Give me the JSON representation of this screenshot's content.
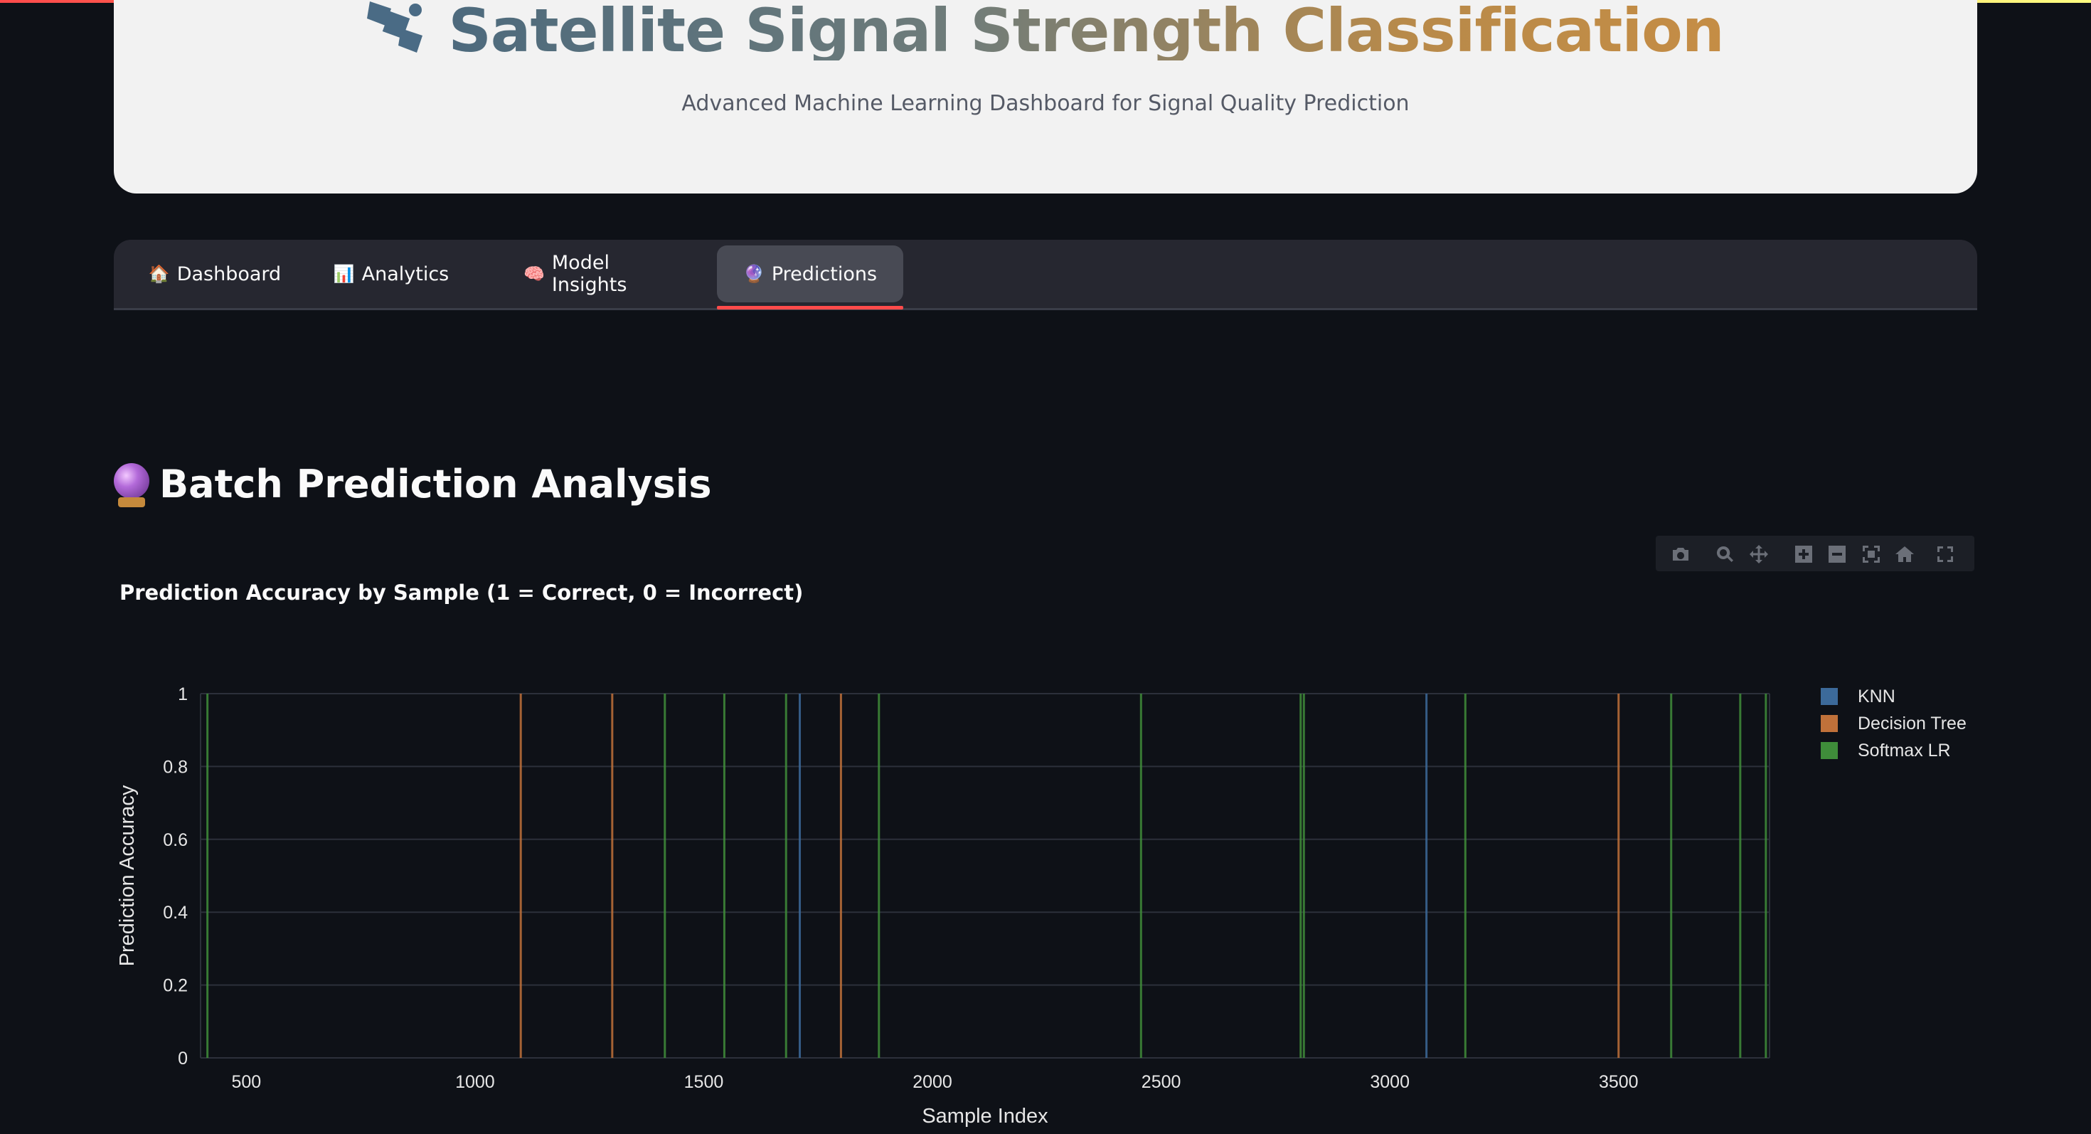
{
  "header": {
    "title": "Satellite Signal Strength Classification",
    "subtitle": "Advanced Machine Learning Dashboard for Signal Quality Prediction",
    "icon": "satellite-icon"
  },
  "tabs": [
    {
      "label": "Dashboard",
      "icon": "🏠",
      "active": false
    },
    {
      "label": "Analytics",
      "icon": "📊",
      "active": false
    },
    {
      "label": "Model Insights",
      "icon": "🧠",
      "active": false
    },
    {
      "label": "Predictions",
      "icon": "🔮",
      "active": true
    }
  ],
  "section": {
    "heading": "Batch Prediction Analysis",
    "icon": "crystal-ball-icon"
  },
  "modebar": [
    "camera-icon",
    "zoom-icon",
    "pan-icon",
    "zoom-in-icon",
    "zoom-out-icon",
    "autoscale-icon",
    "reset-axes-icon",
    "fullscreen-icon"
  ],
  "colors": {
    "background": "#0e1117",
    "header_card": "#f2f2f2",
    "tab_bar": "#262730",
    "tab_active": "#484a54",
    "accent": "#ff4b4b",
    "knn": "#3c6a9a",
    "decision_tree": "#c0713a",
    "softmax_lr": "#3f8d3a"
  },
  "chart_data": {
    "type": "bar",
    "title": "Prediction Accuracy by Sample (1 = Correct, 0 = Incorrect)",
    "xlabel": "Sample Index",
    "ylabel": "Prediction Accuracy",
    "xlim": [
      400,
      3830
    ],
    "ylim": [
      0,
      1
    ],
    "xticks": [
      500,
      1000,
      1500,
      2000,
      2500,
      3000,
      3500
    ],
    "yticks": [
      0,
      0.2,
      0.4,
      0.6,
      0.8,
      1
    ],
    "ytick_labels": [
      "0",
      "0.2",
      "0.4",
      "0.6",
      "0.8",
      "1"
    ],
    "grid": true,
    "legend_position": "right",
    "series": [
      {
        "name": "KNN",
        "color": "#3c6a9a",
        "x": [
          1710,
          3080
        ],
        "values": [
          1,
          1
        ]
      },
      {
        "name": "Decision Tree",
        "color": "#c0713a",
        "x": [
          1100,
          1300,
          1800,
          3500
        ],
        "values": [
          1,
          1,
          1,
          1
        ]
      },
      {
        "name": "Softmax LR",
        "color": "#3f8d3a",
        "x": [
          415,
          1415,
          1545,
          1680,
          1883,
          2456,
          2805,
          2812,
          3165,
          3615,
          3766,
          3822
        ],
        "values": [
          1,
          1,
          1,
          1,
          1,
          1,
          1,
          1,
          1,
          1,
          1,
          1
        ]
      }
    ]
  }
}
